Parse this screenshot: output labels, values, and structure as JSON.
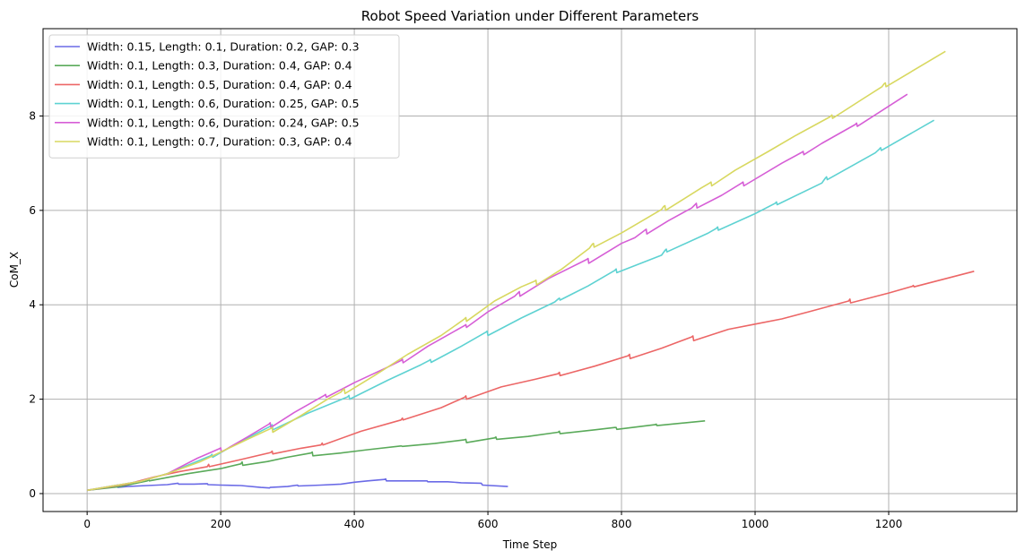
{
  "chart_data": {
    "type": "line",
    "title": "Robot Speed Variation under Different Parameters",
    "xlabel": "Time Step",
    "ylabel": "CoM_X",
    "xlim": [
      -66,
      1392
    ],
    "ylim": [
      -0.38,
      9.85
    ],
    "xticks": [
      0,
      200,
      400,
      600,
      800,
      1000,
      1200
    ],
    "yticks": [
      0,
      2,
      4,
      6,
      8
    ],
    "grid": true,
    "legend_position": "top-left",
    "series": [
      {
        "name": "Width: 0.15, Length: 0.1, Duration: 0.2, GAP: 0.3",
        "color": "#6a6ae6",
        "x": [
          0,
          30,
          45,
          46,
          60,
          90,
          120,
          136,
          137,
          160,
          180,
          181,
          200,
          230,
          260,
          273,
          274,
          300,
          315,
          316,
          350,
          380,
          400,
          420,
          445,
          447,
          448,
          470,
          500,
          509,
          510,
          540,
          560,
          590,
          592,
          630
        ],
        "y": [
          0.07,
          0.13,
          0.18,
          0.13,
          0.15,
          0.17,
          0.19,
          0.22,
          0.2,
          0.2,
          0.21,
          0.19,
          0.18,
          0.17,
          0.13,
          0.12,
          0.13,
          0.15,
          0.18,
          0.16,
          0.18,
          0.2,
          0.24,
          0.27,
          0.3,
          0.31,
          0.27,
          0.27,
          0.27,
          0.27,
          0.25,
          0.25,
          0.23,
          0.22,
          0.18,
          0.15
        ]
      },
      {
        "name": "Width: 0.1, Length: 0.3, Duration: 0.4, GAP: 0.4",
        "color": "#5aaa5a",
        "x": [
          0,
          50,
          90,
          92,
          93,
          150,
          200,
          230,
          232,
          233,
          270,
          300,
          335,
          337,
          338,
          380,
          420,
          470,
          472,
          520,
          565,
          567,
          568,
          610,
          612,
          613,
          660,
          705,
          707,
          708,
          760,
          790,
          792,
          793,
          850,
          852,
          853,
          925
        ],
        "y": [
          0.07,
          0.15,
          0.27,
          0.3,
          0.27,
          0.42,
          0.53,
          0.63,
          0.67,
          0.6,
          0.68,
          0.77,
          0.86,
          0.88,
          0.8,
          0.86,
          0.93,
          1.01,
          1.0,
          1.06,
          1.14,
          1.15,
          1.08,
          1.18,
          1.2,
          1.15,
          1.21,
          1.3,
          1.32,
          1.27,
          1.35,
          1.4,
          1.4,
          1.36,
          1.46,
          1.47,
          1.44,
          1.54
        ]
      },
      {
        "name": "Width: 0.1, Length: 0.5, Duration: 0.4, GAP: 0.4",
        "color": "#ec6666",
        "x": [
          0,
          60,
          100,
          140,
          180,
          182,
          183,
          230,
          275,
          277,
          278,
          320,
          350,
          352,
          353,
          410,
          470,
          472,
          473,
          530,
          565,
          567,
          568,
          620,
          670,
          705,
          707,
          708,
          760,
          810,
          812,
          813,
          860,
          905,
          907,
          908,
          960,
          1000,
          1040,
          1080,
          1140,
          1142,
          1143,
          1200,
          1235,
          1237,
          1238,
          1328
        ],
        "y": [
          0.07,
          0.2,
          0.35,
          0.47,
          0.57,
          0.62,
          0.57,
          0.72,
          0.87,
          0.9,
          0.84,
          0.96,
          1.03,
          1.07,
          1.03,
          1.32,
          1.56,
          1.6,
          1.56,
          1.82,
          2.04,
          2.07,
          2.0,
          2.26,
          2.42,
          2.54,
          2.57,
          2.5,
          2.7,
          2.92,
          2.95,
          2.86,
          3.08,
          3.32,
          3.34,
          3.24,
          3.48,
          3.59,
          3.7,
          3.85,
          4.08,
          4.12,
          4.04,
          4.25,
          4.39,
          4.41,
          4.38,
          4.71
        ]
      },
      {
        "name": "Width: 0.1, Length: 0.6, Duration: 0.25, GAP: 0.5",
        "color": "#5ed2d2",
        "x": [
          0,
          80,
          120,
          185,
          187,
          188,
          220,
          275,
          277,
          278,
          330,
          390,
          392,
          393,
          450,
          500,
          512,
          514,
          515,
          560,
          597,
          599,
          600,
          650,
          700,
          705,
          707,
          708,
          750,
          790,
          792,
          793,
          860,
          865,
          867,
          868,
          930,
          942,
          944,
          945,
          1000,
          1030,
          1032,
          1033,
          1100,
          1105,
          1107,
          1108,
          1180,
          1186,
          1188,
          1189,
          1268
        ],
        "y": [
          0.07,
          0.26,
          0.42,
          0.8,
          0.83,
          0.77,
          1.03,
          1.43,
          1.46,
          1.35,
          1.7,
          2.05,
          2.08,
          2.0,
          2.4,
          2.73,
          2.82,
          2.84,
          2.78,
          3.12,
          3.42,
          3.44,
          3.35,
          3.72,
          4.06,
          4.12,
          4.14,
          4.1,
          4.4,
          4.73,
          4.76,
          4.68,
          5.05,
          5.15,
          5.18,
          5.12,
          5.52,
          5.62,
          5.65,
          5.58,
          5.93,
          6.15,
          6.18,
          6.12,
          6.58,
          6.68,
          6.71,
          6.65,
          7.22,
          7.3,
          7.33,
          7.27,
          7.91
        ]
      },
      {
        "name": "Width: 0.1, Length: 0.6, Duration: 0.24, GAP: 0.5",
        "color": "#d65ed6",
        "x": [
          0,
          80,
          120,
          165,
          198,
          200,
          201,
          240,
          272,
          274,
          275,
          310,
          355,
          357,
          358,
          400,
          450,
          470,
          472,
          473,
          510,
          565,
          567,
          568,
          600,
          640,
          645,
          647,
          648,
          690,
          748,
          750,
          751,
          800,
          820,
          835,
          837,
          838,
          870,
          905,
          910,
          912,
          913,
          950,
          980,
          982,
          983,
          1040,
          1070,
          1072,
          1073,
          1100,
          1150,
          1152,
          1153,
          1228
        ],
        "y": [
          0.07,
          0.26,
          0.42,
          0.75,
          0.95,
          0.97,
          0.88,
          1.2,
          1.47,
          1.5,
          1.4,
          1.72,
          2.08,
          2.1,
          2.04,
          2.35,
          2.68,
          2.82,
          2.85,
          2.77,
          3.12,
          3.56,
          3.58,
          3.52,
          3.85,
          4.18,
          4.25,
          4.28,
          4.18,
          4.55,
          4.96,
          4.98,
          4.88,
          5.3,
          5.42,
          5.58,
          5.6,
          5.5,
          5.78,
          6.05,
          6.12,
          6.15,
          6.05,
          6.32,
          6.58,
          6.6,
          6.52,
          7.0,
          7.23,
          7.25,
          7.18,
          7.42,
          7.82,
          7.85,
          7.78,
          8.46
        ]
      },
      {
        "name": "Width: 0.1, Length: 0.7, Duration: 0.3, GAP: 0.4",
        "color": "#d8d860",
        "x": [
          0,
          80,
          120,
          170,
          200,
          240,
          275,
          277,
          278,
          320,
          360,
          380,
          383,
          385,
          386,
          430,
          480,
          530,
          555,
          565,
          567,
          568,
          610,
          650,
          670,
          672,
          673,
          710,
          752,
          756,
          758,
          759,
          800,
          860,
          863,
          865,
          866,
          920,
          932,
          934,
          935,
          970,
          1020,
          1060,
          1112,
          1115,
          1116,
          1160,
          1190,
          1193,
          1195,
          1196,
          1285
        ],
        "y": [
          0.07,
          0.26,
          0.42,
          0.68,
          0.88,
          1.15,
          1.38,
          1.4,
          1.3,
          1.65,
          2.0,
          2.15,
          2.2,
          2.22,
          2.12,
          2.5,
          2.95,
          3.35,
          3.6,
          3.7,
          3.73,
          3.65,
          4.08,
          4.38,
          4.5,
          4.52,
          4.42,
          4.75,
          5.2,
          5.28,
          5.3,
          5.22,
          5.52,
          6.02,
          6.08,
          6.1,
          6.0,
          6.48,
          6.58,
          6.6,
          6.52,
          6.85,
          7.25,
          7.58,
          7.98,
          8.02,
          7.95,
          8.35,
          8.62,
          8.68,
          8.7,
          8.62,
          9.37
        ]
      }
    ]
  }
}
